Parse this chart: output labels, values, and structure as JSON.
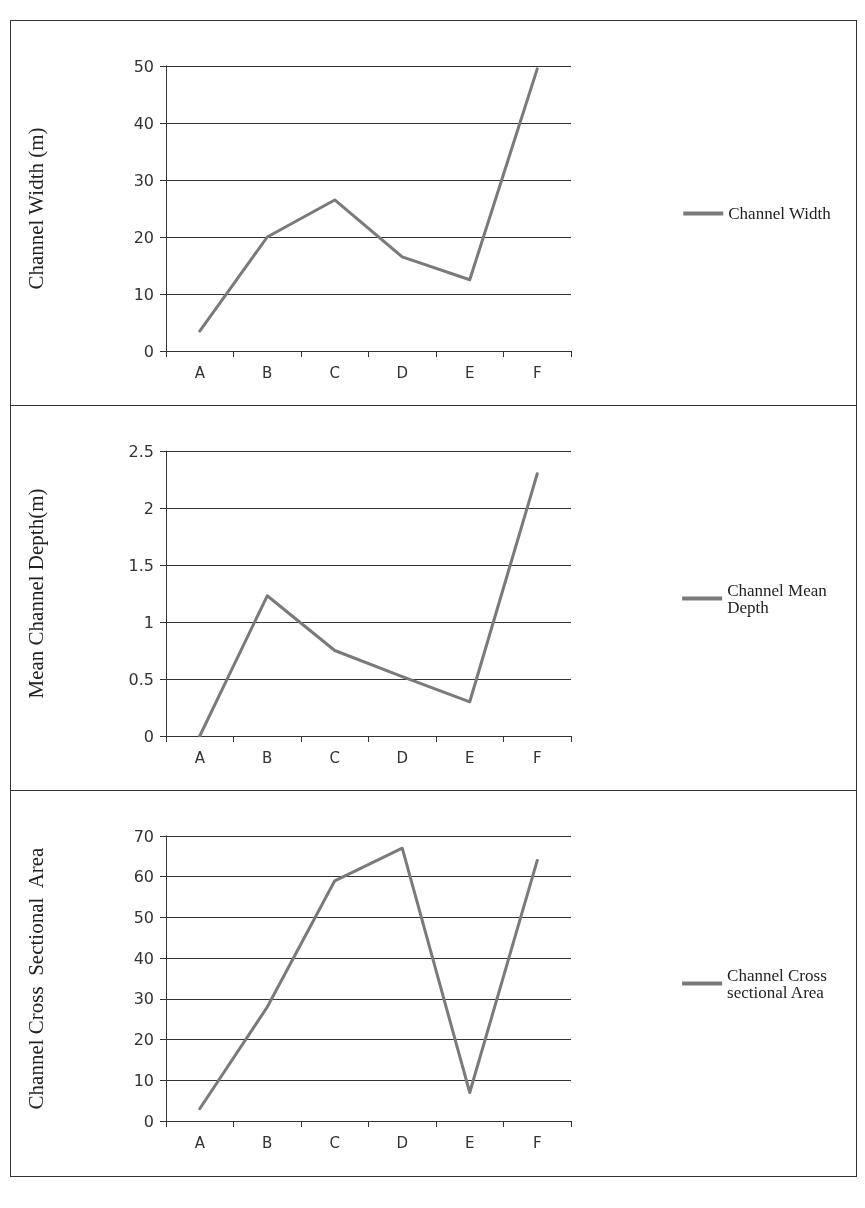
{
  "chart_data": [
    {
      "type": "line",
      "ylabel": "Channel Width (m)",
      "categories": [
        "A",
        "B",
        "C",
        "D",
        "E",
        "F"
      ],
      "series": [
        {
          "name": "Channel Width",
          "color": "#7a7a7a",
          "values": [
            3.5,
            20,
            26.5,
            16.5,
            12.5,
            49.5
          ]
        }
      ],
      "ylim": [
        0,
        50
      ],
      "yticks": [
        0,
        10,
        20,
        30,
        40,
        50
      ],
      "grid": "y",
      "legend": "right",
      "marker": "none",
      "line_style": "solid"
    },
    {
      "type": "line",
      "ylabel": "Mean Channel Depth(m)",
      "categories": [
        "A",
        "B",
        "C",
        "D",
        "E",
        "F"
      ],
      "series": [
        {
          "name": "Channel Mean Depth",
          "color": "#7a7a7a",
          "values": [
            0,
            1.23,
            0.75,
            0.52,
            0.3,
            2.3
          ]
        }
      ],
      "ylim": [
        0,
        2.5
      ],
      "yticks": [
        0,
        0.5,
        1,
        1.5,
        2,
        2.5
      ],
      "grid": "y",
      "legend": "right",
      "marker": "none",
      "line_style": "solid"
    },
    {
      "type": "line",
      "ylabel": "Channel Cross  Sectional  Area",
      "categories": [
        "A",
        "B",
        "C",
        "D",
        "E",
        "F"
      ],
      "series": [
        {
          "name": "Channel Cross sectional Area",
          "color": "#7a7a7a",
          "values": [
            3,
            28,
            59,
            67,
            7,
            64
          ]
        }
      ],
      "ylim": [
        0,
        70
      ],
      "yticks": [
        0,
        10,
        20,
        30,
        40,
        50,
        60,
        70
      ],
      "grid": "y",
      "legend": "right",
      "marker": "none",
      "line_style": "solid"
    }
  ]
}
